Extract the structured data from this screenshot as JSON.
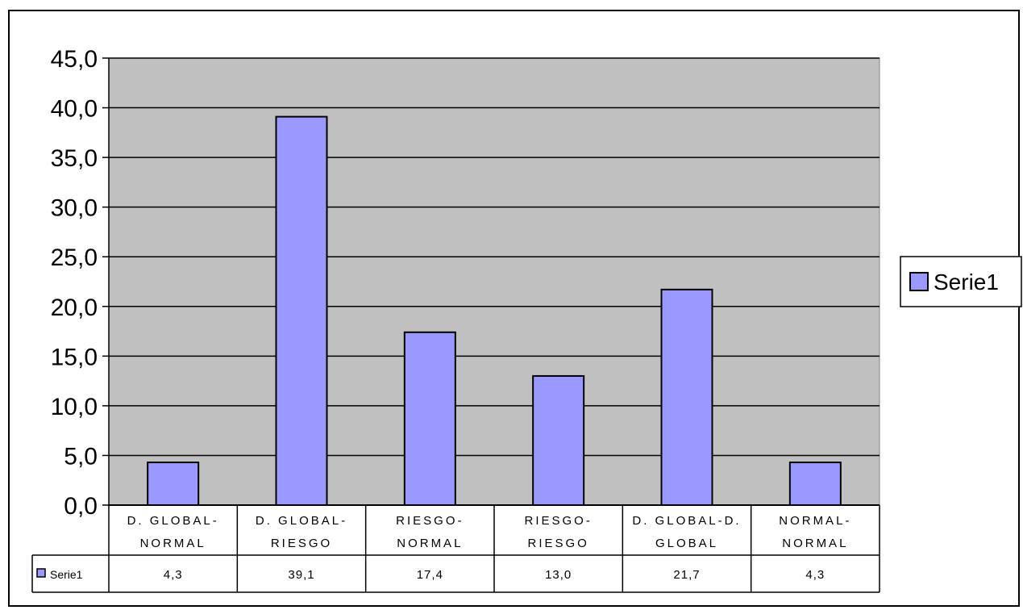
{
  "chart_data": {
    "type": "bar",
    "categories": [
      [
        "D. GLOBAL-",
        "NORMAL"
      ],
      [
        "D. GLOBAL-",
        "RIESGO"
      ],
      [
        "RIESGO-",
        "NORMAL"
      ],
      [
        "RIESGO-",
        "RIESGO"
      ],
      [
        "D. GLOBAL-D.",
        "GLOBAL"
      ],
      [
        "NORMAL-",
        "NORMAL"
      ]
    ],
    "series": [
      {
        "name": "Serie1",
        "values": [
          4.3,
          39.1,
          17.4,
          13.0,
          21.7,
          4.3
        ]
      }
    ],
    "data_labels": [
      "4,3",
      "39,1",
      "17,4",
      "13,0",
      "21,7",
      "4,3"
    ],
    "y_ticks": [
      "0,0",
      "5,0",
      "10,0",
      "15,0",
      "20,0",
      "25,0",
      "30,0",
      "35,0",
      "40,0",
      "45,0"
    ],
    "ylim": [
      0,
      45
    ],
    "grid": true,
    "legend": "right",
    "data_table": true,
    "colors": {
      "bar": "#9999ff",
      "plot_bg": "#c0c0c0",
      "grid": "#000000"
    }
  }
}
